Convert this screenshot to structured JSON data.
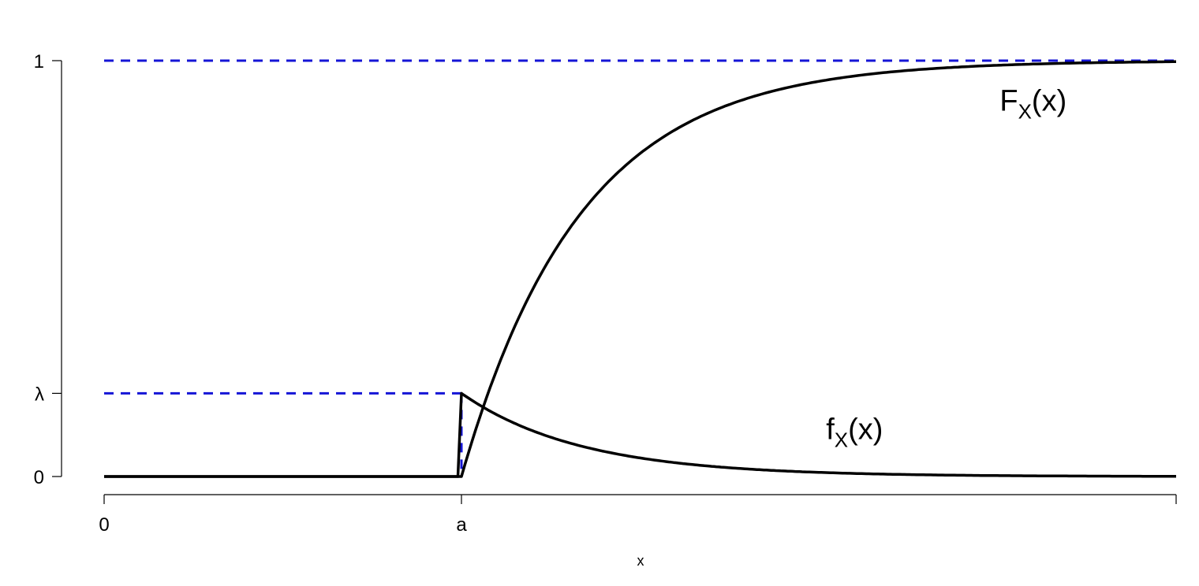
{
  "chart_data": {
    "type": "line",
    "title": "",
    "xlabel": "x",
    "ylabel": "",
    "xlim": [
      0,
      3
    ],
    "ylim": [
      0,
      1
    ],
    "grid": false,
    "params": {
      "a": 1,
      "lambda": 0.2,
      "rate": 3
    },
    "x_ticks": [
      {
        "value": 0,
        "label": "0"
      },
      {
        "value": 1,
        "label": "a"
      },
      {
        "value": 3,
        "label": ""
      }
    ],
    "y_ticks": [
      {
        "value": 0,
        "label": "0"
      },
      {
        "value": 0.2,
        "label": "λ"
      },
      {
        "value": 1,
        "label": "1"
      }
    ],
    "series": [
      {
        "id": "cdf",
        "style": "solid",
        "color": "#000000"
      },
      {
        "id": "pdf",
        "style": "solid",
        "color": "#000000"
      }
    ],
    "annotations": [
      {
        "id": "cdf-label",
        "main": "F",
        "sub": "X",
        "rest": "(x)",
        "x": 2.6,
        "y": 0.88
      },
      {
        "id": "pdf-label",
        "main": "f",
        "sub": "X",
        "rest": "(x)",
        "x": 2.1,
        "y": 0.09
      }
    ],
    "guides": [
      {
        "id": "guide-one",
        "color": "#1515d6",
        "points": [
          [
            0,
            1
          ],
          [
            3,
            1
          ]
        ]
      },
      {
        "id": "guide-lambda",
        "color": "#1515d6",
        "points": [
          [
            0,
            0.2
          ],
          [
            1,
            0.2
          ]
        ]
      },
      {
        "id": "guide-drop",
        "color": "#1515d6",
        "points": [
          [
            1,
            0.2
          ],
          [
            1,
            0
          ]
        ]
      }
    ]
  }
}
